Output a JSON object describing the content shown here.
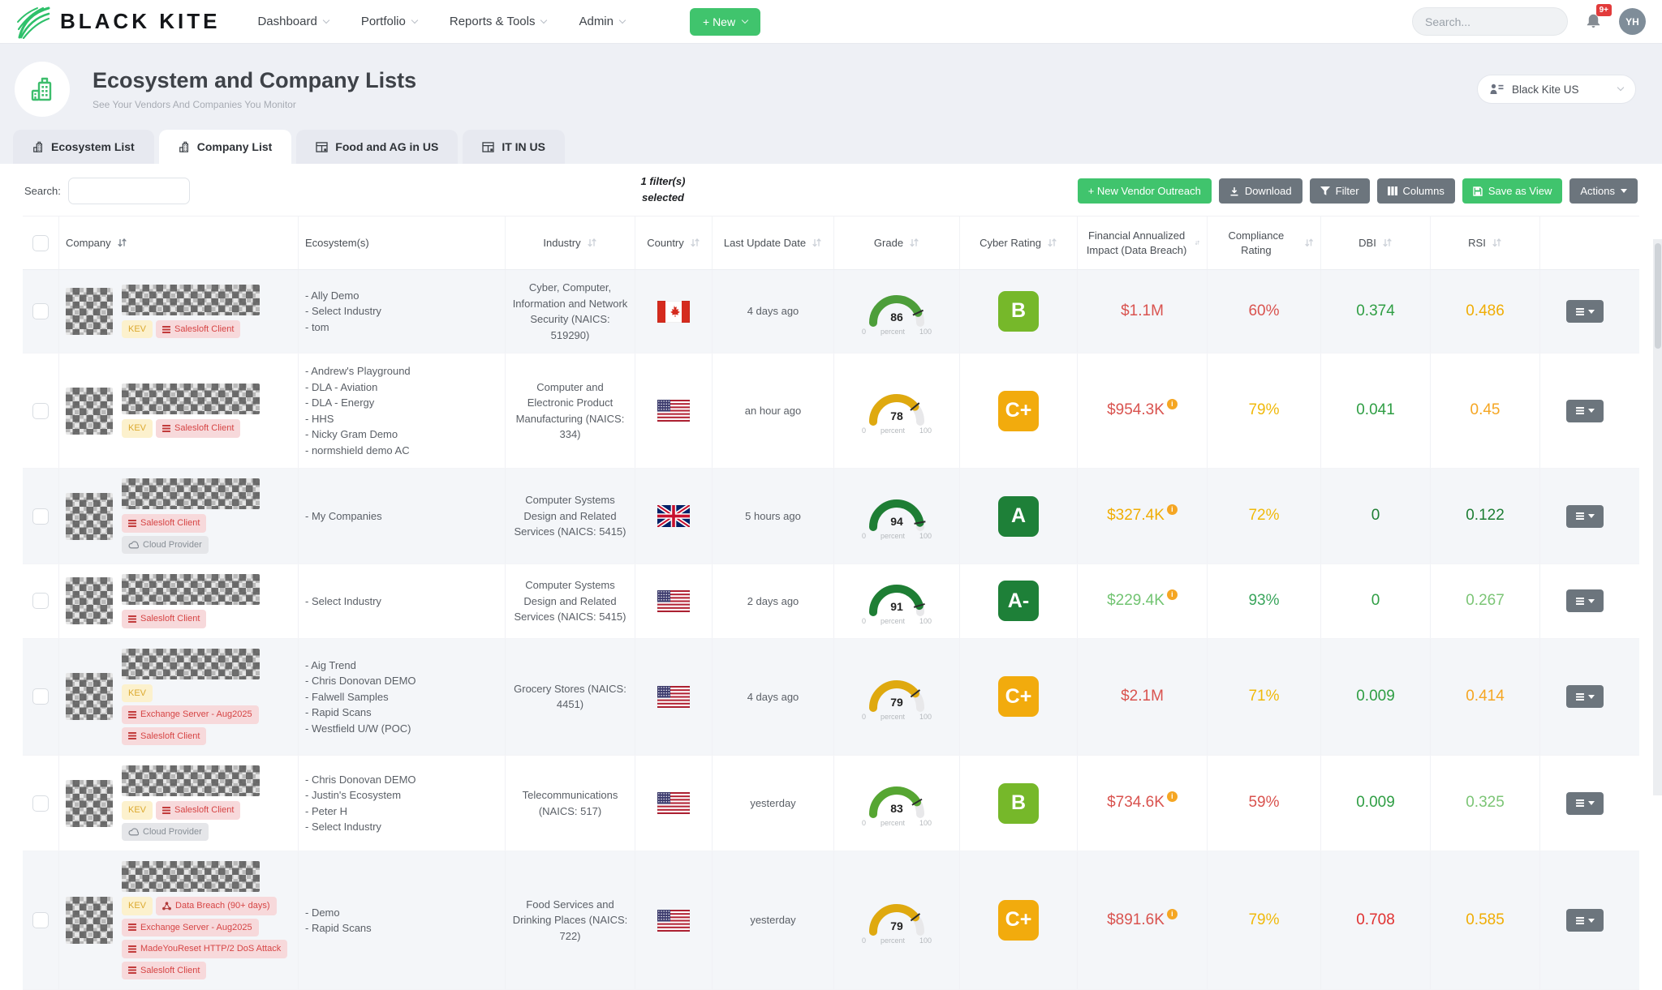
{
  "navbar": {
    "brand": "BLACK KITE",
    "menus": [
      {
        "label": "Dashboard"
      },
      {
        "label": "Portfolio"
      },
      {
        "label": "Reports & Tools"
      },
      {
        "label": "Admin"
      }
    ],
    "new_button": "+ New",
    "search_placeholder": "Search...",
    "notification_badge": "9+",
    "avatar_initials": "YH"
  },
  "header": {
    "title": "Ecosystem and Company Lists",
    "subtitle": "See Your Vendors And Companies You Monitor",
    "scope_selector": "Black Kite US"
  },
  "tabs": [
    {
      "label": "Ecosystem List",
      "icon": "building-icon",
      "active": false
    },
    {
      "label": "Company List",
      "icon": "building-icon",
      "active": true
    },
    {
      "label": "Food and AG in US",
      "icon": "table-icon",
      "active": false
    },
    {
      "label": "IT IN US",
      "icon": "table-icon",
      "active": false
    }
  ],
  "toolbar": {
    "search_label": "Search:",
    "filters_note_line1": "1 filter(s)",
    "filters_note_line2": "selected",
    "buttons": [
      {
        "label": "+ New Vendor Outreach",
        "style": "green",
        "icon": null
      },
      {
        "label": "Download",
        "style": "gray",
        "icon": "download-icon"
      },
      {
        "label": "Filter",
        "style": "gray",
        "icon": "filter-icon"
      },
      {
        "label": "Columns",
        "style": "gray",
        "icon": "columns-icon"
      },
      {
        "label": "Save as View",
        "style": "green",
        "icon": "save-icon"
      },
      {
        "label": "Actions",
        "style": "gray",
        "icon": null,
        "caret": true
      }
    ]
  },
  "table": {
    "gauge_scale": {
      "min": "0",
      "label": "percent",
      "max": "100"
    },
    "columns": [
      {
        "label": "",
        "sortable": false,
        "align": "center"
      },
      {
        "label": "Company",
        "sortable": true,
        "align": "left",
        "sort_active": true
      },
      {
        "label": "Ecosystem(s)",
        "sortable": false,
        "align": "left"
      },
      {
        "label": "Industry",
        "sortable": true,
        "align": "center"
      },
      {
        "label": "Country",
        "sortable": true,
        "align": "center"
      },
      {
        "label": "Last Update Date",
        "sortable": true,
        "align": "center"
      },
      {
        "label": "Grade",
        "sortable": true,
        "align": "center"
      },
      {
        "label": "Cyber Rating",
        "sortable": true,
        "align": "center"
      },
      {
        "label": "Financial Annualized Impact (Data Breach)",
        "sortable": true,
        "align": "center"
      },
      {
        "label": "Compliance Rating",
        "sortable": true,
        "align": "center"
      },
      {
        "label": "DBI",
        "sortable": true,
        "align": "center"
      },
      {
        "label": "RSI",
        "sortable": true,
        "align": "center"
      },
      {
        "label": "",
        "sortable": false,
        "align": "center"
      }
    ],
    "rows": [
      {
        "tags": [
          {
            "label": "KEV",
            "style": "kev",
            "icon": null
          },
          {
            "label": "Salesloft Client",
            "style": "danger",
            "icon": "bars-icon"
          }
        ],
        "ecosystems": [
          "- Ally Demo",
          "- Select Industry",
          "- tom"
        ],
        "industry": "Cyber, Computer, Information and Network Security (NAICS: 519290)",
        "country": "CA",
        "last_update": "4 days ago",
        "grade": {
          "value": 86,
          "color": "#4d9e3a"
        },
        "cyber_rating": {
          "label": "B",
          "color": "#76b82a"
        },
        "financial": {
          "value": "$1.1M",
          "color": "#d9534f",
          "info": false
        },
        "compliance": {
          "value": "60%",
          "color": "#d9534f"
        },
        "dbi": {
          "value": "0.374",
          "color": "#2f9e44"
        },
        "rsi": {
          "value": "0.486",
          "color": "#f0ad05"
        }
      },
      {
        "tags": [
          {
            "label": "KEV",
            "style": "kev",
            "icon": null
          },
          {
            "label": "Salesloft Client",
            "style": "danger",
            "icon": "bars-icon"
          }
        ],
        "ecosystems": [
          "- Andrew's Playground",
          "- DLA - Aviation",
          "- DLA - Energy",
          "- HHS",
          "- Nicky Gram Demo",
          "- normshield demo AC"
        ],
        "industry": "Computer and Electronic Product Manufacturing (NAICS: 334)",
        "country": "US",
        "last_update": "an hour ago",
        "grade": {
          "value": 78,
          "color": "#dfa90f"
        },
        "cyber_rating": {
          "label": "C+",
          "color": "#f2ab0d"
        },
        "financial": {
          "value": "$954.3K",
          "color": "#d9534f",
          "info": true
        },
        "compliance": {
          "value": "79%",
          "color": "#f0b90b"
        },
        "dbi": {
          "value": "0.041",
          "color": "#2f9e44"
        },
        "rsi": {
          "value": "0.45",
          "color": "#f5a623"
        }
      },
      {
        "tags": [
          {
            "label": "Salesloft Client",
            "style": "danger",
            "icon": "bars-icon"
          },
          {
            "label": "Cloud Provider",
            "style": "gray",
            "icon": "cloud-icon"
          }
        ],
        "ecosystems": [
          "- My Companies"
        ],
        "industry": "Computer Systems Design and Related Services (NAICS: 5415)",
        "country": "GB",
        "last_update": "5 hours ago",
        "grade": {
          "value": 94,
          "color": "#1e7e34"
        },
        "cyber_rating": {
          "label": "A",
          "color": "#1e8038"
        },
        "financial": {
          "value": "$327.4K",
          "color": "#f0ad05",
          "info": true
        },
        "compliance": {
          "value": "72%",
          "color": "#f0b90b"
        },
        "dbi": {
          "value": "0",
          "color": "#1e7e34"
        },
        "rsi": {
          "value": "0.122",
          "color": "#1e7e34"
        }
      },
      {
        "tags": [
          {
            "label": "Salesloft Client",
            "style": "danger",
            "icon": "bars-icon"
          }
        ],
        "ecosystems": [
          "- Select Industry"
        ],
        "industry": "Computer Systems Design and Related Services (NAICS: 5415)",
        "country": "US",
        "last_update": "2 days ago",
        "grade": {
          "value": 91,
          "color": "#1e7e34"
        },
        "cyber_rating": {
          "label": "A-",
          "color": "#1e8038"
        },
        "financial": {
          "value": "$229.4K",
          "color": "#72c472",
          "info": true
        },
        "compliance": {
          "value": "93%",
          "color": "#3aa55c"
        },
        "dbi": {
          "value": "0",
          "color": "#2f9e44"
        },
        "rsi": {
          "value": "0.267",
          "color": "#7cc576"
        }
      },
      {
        "tags": [
          {
            "label": "KEV",
            "style": "kev",
            "icon": null
          },
          {
            "label": "Exchange Server - Aug2025",
            "style": "danger",
            "icon": "bars-icon"
          },
          {
            "label": "Salesloft Client",
            "style": "danger",
            "icon": "bars-icon"
          }
        ],
        "ecosystems": [
          "- Aig Trend",
          "- Chris Donovan DEMO",
          "- Falwell Samples",
          "- Rapid Scans",
          "- Westfield U/W (POC)"
        ],
        "industry": "Grocery Stores (NAICS: 4451)",
        "country": "US",
        "last_update": "4 days ago",
        "grade": {
          "value": 79,
          "color": "#dfa90f"
        },
        "cyber_rating": {
          "label": "C+",
          "color": "#f2ab0d"
        },
        "financial": {
          "value": "$2.1M",
          "color": "#d9534f",
          "info": false
        },
        "compliance": {
          "value": "71%",
          "color": "#f0b90b"
        },
        "dbi": {
          "value": "0.009",
          "color": "#2f9e44"
        },
        "rsi": {
          "value": "0.414",
          "color": "#f5a623"
        }
      },
      {
        "tags": [
          {
            "label": "KEV",
            "style": "kev",
            "icon": null
          },
          {
            "label": "Salesloft Client",
            "style": "danger",
            "icon": "bars-icon"
          },
          {
            "label": "Cloud Provider",
            "style": "gray",
            "icon": "cloud-icon"
          }
        ],
        "ecosystems": [
          "- Chris Donovan DEMO",
          "- Justin's Ecosystem",
          "- Peter H",
          "- Select Industry"
        ],
        "industry": "Telecommunications (NAICS: 517)",
        "country": "US",
        "last_update": "yesterday",
        "grade": {
          "value": 83,
          "color": "#56a632"
        },
        "cyber_rating": {
          "label": "B",
          "color": "#76b82a"
        },
        "financial": {
          "value": "$734.6K",
          "color": "#d9534f",
          "info": true
        },
        "compliance": {
          "value": "59%",
          "color": "#d9534f"
        },
        "dbi": {
          "value": "0.009",
          "color": "#2f9e44"
        },
        "rsi": {
          "value": "0.325",
          "color": "#7cc576"
        }
      },
      {
        "tags": [
          {
            "label": "KEV",
            "style": "kev",
            "icon": null
          },
          {
            "label": "Data Breach (90+ days)",
            "style": "danger",
            "icon": "breach-icon"
          },
          {
            "label": "Exchange Server - Aug2025",
            "style": "danger",
            "icon": "bars-icon"
          },
          {
            "label": "MadeYouReset HTTP/2 DoS Attack",
            "style": "danger",
            "icon": "bars-icon"
          },
          {
            "label": "Salesloft Client",
            "style": "danger",
            "icon": "bars-icon"
          }
        ],
        "ecosystems": [
          "- Demo",
          "- Rapid Scans"
        ],
        "industry": "Food Services and Drinking Places (NAICS: 722)",
        "country": "US",
        "last_update": "yesterday",
        "grade": {
          "value": 79,
          "color": "#dfa90f"
        },
        "cyber_rating": {
          "label": "C+",
          "color": "#f2ab0d"
        },
        "financial": {
          "value": "$891.6K",
          "color": "#d9534f",
          "info": true
        },
        "compliance": {
          "value": "79%",
          "color": "#f0b90b"
        },
        "dbi": {
          "value": "0.708",
          "color": "#e03131"
        },
        "rsi": {
          "value": "0.585",
          "color": "#f0ad05"
        }
      }
    ]
  }
}
